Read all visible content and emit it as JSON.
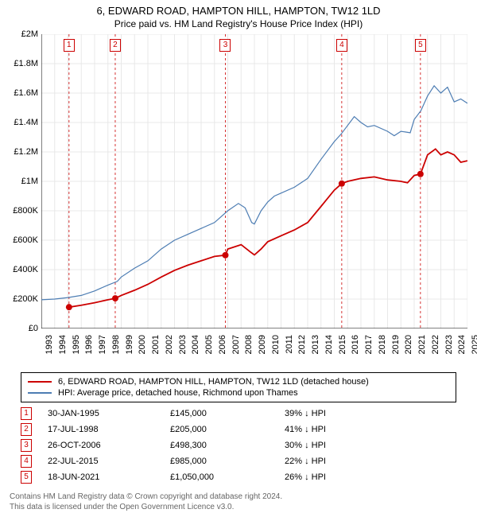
{
  "title": "6, EDWARD ROAD, HAMPTON HILL, HAMPTON, TW12 1LD",
  "subtitle": "Price paid vs. HM Land Registry's House Price Index (HPI)",
  "chart": {
    "type": "line",
    "background_color": "#ffffff",
    "grid_color": "#e8e8e8",
    "axis_color": "#000000",
    "y": {
      "min": 0,
      "max": 2000000,
      "step": 200000,
      "labels": [
        "£0",
        "£200K",
        "£400K",
        "£600K",
        "£800K",
        "£1M",
        "£1.2M",
        "£1.4M",
        "£1.6M",
        "£1.8M",
        "£2M"
      ]
    },
    "x": {
      "min": 1993,
      "max": 2025,
      "step": 1,
      "labels": [
        "1993",
        "1994",
        "1995",
        "1996",
        "1997",
        "1998",
        "1999",
        "2000",
        "2001",
        "2002",
        "2003",
        "2004",
        "2005",
        "2006",
        "2007",
        "2008",
        "2009",
        "2010",
        "2011",
        "2012",
        "2013",
        "2014",
        "2015",
        "2016",
        "2017",
        "2018",
        "2019",
        "2020",
        "2021",
        "2022",
        "2023",
        "2024",
        "2025"
      ]
    },
    "series": [
      {
        "name": "property",
        "label": "6, EDWARD ROAD, HAMPTON HILL, HAMPTON, TW12 1LD (detached house)",
        "color": "#cc0000",
        "line_width": 1.8,
        "points": [
          [
            1995.08,
            145000
          ],
          [
            1996,
            158000
          ],
          [
            1997,
            175000
          ],
          [
            1998,
            195000
          ],
          [
            1998.55,
            205000
          ],
          [
            1999,
            225000
          ],
          [
            2000,
            260000
          ],
          [
            2001,
            300000
          ],
          [
            2002,
            350000
          ],
          [
            2003,
            395000
          ],
          [
            2004,
            430000
          ],
          [
            2005,
            460000
          ],
          [
            2006,
            490000
          ],
          [
            2006.82,
            498300
          ],
          [
            2007,
            540000
          ],
          [
            2008,
            570000
          ],
          [
            2008.7,
            520000
          ],
          [
            2009,
            500000
          ],
          [
            2009.5,
            540000
          ],
          [
            2010,
            590000
          ],
          [
            2011,
            630000
          ],
          [
            2012,
            670000
          ],
          [
            2013,
            720000
          ],
          [
            2014,
            830000
          ],
          [
            2015,
            940000
          ],
          [
            2015.56,
            985000
          ],
          [
            2016,
            1000000
          ],
          [
            2017,
            1020000
          ],
          [
            2018,
            1030000
          ],
          [
            2019,
            1010000
          ],
          [
            2020,
            1000000
          ],
          [
            2020.5,
            990000
          ],
          [
            2021,
            1040000
          ],
          [
            2021.47,
            1050000
          ],
          [
            2022,
            1180000
          ],
          [
            2022.6,
            1220000
          ],
          [
            2023,
            1180000
          ],
          [
            2023.5,
            1200000
          ],
          [
            2024,
            1180000
          ],
          [
            2024.5,
            1130000
          ],
          [
            2025,
            1140000
          ]
        ]
      },
      {
        "name": "hpi",
        "label": "HPI: Average price, detached house, Richmond upon Thames",
        "color": "#4d7db3",
        "line_width": 1.2,
        "points": [
          [
            1993,
            195000
          ],
          [
            1994,
            200000
          ],
          [
            1995,
            210000
          ],
          [
            1996,
            225000
          ],
          [
            1997,
            255000
          ],
          [
            1998,
            295000
          ],
          [
            1998.7,
            320000
          ],
          [
            1999,
            350000
          ],
          [
            2000,
            410000
          ],
          [
            2001,
            460000
          ],
          [
            2002,
            540000
          ],
          [
            2003,
            600000
          ],
          [
            2004,
            640000
          ],
          [
            2005,
            680000
          ],
          [
            2006,
            720000
          ],
          [
            2007,
            800000
          ],
          [
            2007.8,
            850000
          ],
          [
            2008.3,
            820000
          ],
          [
            2008.8,
            720000
          ],
          [
            2009,
            710000
          ],
          [
            2009.5,
            800000
          ],
          [
            2010,
            860000
          ],
          [
            2010.5,
            900000
          ],
          [
            2011,
            920000
          ],
          [
            2012,
            960000
          ],
          [
            2013,
            1020000
          ],
          [
            2014,
            1150000
          ],
          [
            2015,
            1270000
          ],
          [
            2015.5,
            1320000
          ],
          [
            2016,
            1380000
          ],
          [
            2016.5,
            1440000
          ],
          [
            2017,
            1400000
          ],
          [
            2017.5,
            1370000
          ],
          [
            2018,
            1380000
          ],
          [
            2019,
            1340000
          ],
          [
            2019.5,
            1310000
          ],
          [
            2020,
            1340000
          ],
          [
            2020.7,
            1330000
          ],
          [
            2021,
            1420000
          ],
          [
            2021.5,
            1480000
          ],
          [
            2022,
            1580000
          ],
          [
            2022.5,
            1650000
          ],
          [
            2023,
            1600000
          ],
          [
            2023.5,
            1640000
          ],
          [
            2024,
            1540000
          ],
          [
            2024.5,
            1560000
          ],
          [
            2025,
            1530000
          ]
        ]
      }
    ],
    "sale_markers": [
      {
        "n": "1",
        "year": 1995.08,
        "price": 145000,
        "dash_color": "#cc0000"
      },
      {
        "n": "2",
        "year": 1998.55,
        "price": 205000,
        "dash_color": "#cc0000"
      },
      {
        "n": "3",
        "year": 2006.82,
        "price": 498300,
        "dash_color": "#cc0000"
      },
      {
        "n": "4",
        "year": 2015.56,
        "price": 985000,
        "dash_color": "#cc0000"
      },
      {
        "n": "5",
        "year": 2021.47,
        "price": 1050000,
        "dash_color": "#cc0000"
      }
    ],
    "marker_box_border": "#cc0000",
    "marker_text_color": "#cc0000",
    "sale_dot_color": "#cc0000",
    "sale_dot_radius": 4
  },
  "legend": {
    "items": [
      {
        "color": "#cc0000",
        "width": 2,
        "label": "6, EDWARD ROAD, HAMPTON HILL, HAMPTON, TW12 1LD (detached house)"
      },
      {
        "color": "#4d7db3",
        "width": 1.2,
        "label": "HPI: Average price, detached house, Richmond upon Thames"
      }
    ]
  },
  "sales": [
    {
      "n": "1",
      "date": "30-JAN-1995",
      "price": "£145,000",
      "pct": "39% ↓ HPI"
    },
    {
      "n": "2",
      "date": "17-JUL-1998",
      "price": "£205,000",
      "pct": "41% ↓ HPI"
    },
    {
      "n": "3",
      "date": "26-OCT-2006",
      "price": "£498,300",
      "pct": "30% ↓ HPI"
    },
    {
      "n": "4",
      "date": "22-JUL-2015",
      "price": "£985,000",
      "pct": "22% ↓ HPI"
    },
    {
      "n": "5",
      "date": "18-JUN-2021",
      "price": "£1,050,000",
      "pct": "26% ↓ HPI"
    }
  ],
  "footer_line1": "Contains HM Land Registry data © Crown copyright and database right 2024.",
  "footer_line2": "This data is licensed under the Open Government Licence v3.0."
}
